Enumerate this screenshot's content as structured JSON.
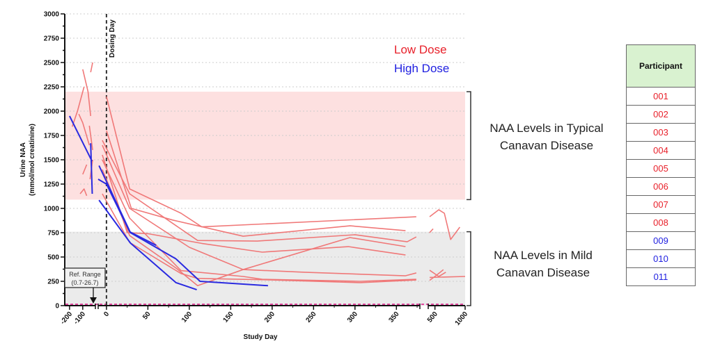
{
  "chart_data": {
    "type": "line",
    "xlabel": "Study Day",
    "ylabel_line1": "Urine NAA",
    "ylabel_line2": "(mmol/mol creatinine)",
    "ylim": [
      0,
      3000
    ],
    "y_ticks": [
      0,
      250,
      500,
      750,
      1000,
      1250,
      1500,
      1750,
      2000,
      2250,
      2500,
      2750,
      3000
    ],
    "x_axis": "segmented (broken axis)",
    "x_segments": [
      [
        -210,
        -20
      ],
      [
        -10,
        380
      ],
      [
        400,
        1000
      ]
    ],
    "x_ticks": [
      -200,
      -100,
      0,
      50,
      100,
      150,
      200,
      250,
      300,
      350,
      500,
      1000
    ],
    "grid": "horizontal dotted",
    "dosing_day": {
      "x": 0,
      "label": "Dosing Day"
    },
    "bands": [
      {
        "label": "NAA Levels in Typical Canavan Disease",
        "range": [
          1090,
          2200
        ],
        "color": "#fde0e0"
      },
      {
        "label": "NAA Levels in Mild Canavan Disease",
        "range": [
          0,
          760
        ],
        "color": "#ebebeb"
      }
    ],
    "reference_range": {
      "label_line1": "Ref. Range",
      "label_line2": "(0.7-26.7)",
      "range": [
        0.7,
        26.7
      ],
      "color": "#e0409a"
    },
    "legend": [
      {
        "name": "Low Dose",
        "color": "#e8202a"
      },
      {
        "name": "High Dose",
        "color": "#2020e0"
      }
    ],
    "legend_placement": "top-right",
    "series": [
      {
        "name": "001",
        "group": "Low Dose",
        "segments": [
          [
            [
              -100,
              2430
            ],
            [
              -60,
              2200
            ],
            [
              -40,
              1950
            ]
          ],
          [
            [
              0,
              2150
            ],
            [
              28,
              1200
            ],
            [
              90,
              950
            ],
            [
              115,
              810
            ],
            [
              374,
              914
            ]
          ],
          [
            [
              412,
              914
            ],
            [
              563,
              986
            ],
            [
              656,
              950
            ],
            [
              760,
              680
            ],
            [
              912,
              807
            ]
          ]
        ]
      },
      {
        "name": "002",
        "group": "Low Dose",
        "segments": [
          [
            [
              -180,
              1840
            ],
            [
              -140,
              2000
            ],
            [
              -90,
              2250
            ]
          ],
          [
            [
              0,
              1800
            ],
            [
              30,
              1000
            ],
            [
              80,
              880
            ],
            [
              165,
              714
            ],
            [
              294,
              821
            ],
            [
              361,
              771
            ]
          ],
          [
            [
              410,
              750
            ],
            [
              470,
              790
            ]
          ]
        ]
      },
      {
        "name": "003",
        "group": "Low Dose",
        "segments": [
          [
            [
              -130,
              1970
            ],
            [
              -100,
              1880
            ],
            [
              -50,
              1650
            ]
          ],
          [
            [
              -5,
              1700
            ],
            [
              28,
              1150
            ],
            [
              110,
              670
            ],
            [
              182,
              664
            ],
            [
              300,
              729
            ],
            [
              363,
              657
            ],
            [
              374,
              707
            ]
          ]
        ]
      },
      {
        "name": "004",
        "group": "Low Dose",
        "segments": [
          [
            [
              -100,
              1350
            ],
            [
              -70,
              1450
            ]
          ],
          [
            [
              -5,
              1550
            ],
            [
              25,
              750
            ],
            [
              50,
              740
            ],
            [
              115,
              640
            ],
            [
              188,
              550
            ],
            [
              292,
              607
            ],
            [
              361,
              521
            ]
          ]
        ]
      },
      {
        "name": "005",
        "group": "Low Dose",
        "segments": [
          [
            [
              -120,
              1150
            ],
            [
              -90,
              1200
            ],
            [
              -70,
              1130
            ]
          ],
          [
            [
              -5,
              1650
            ],
            [
              28,
              1000
            ],
            [
              100,
              600
            ],
            [
              165,
              371
            ],
            [
              239,
              343
            ],
            [
              361,
              307
            ],
            [
              374,
              336
            ]
          ],
          [
            [
              412,
              364
            ],
            [
              563,
              300
            ],
            [
              680,
              343
            ]
          ]
        ]
      },
      {
        "name": "006",
        "group": "Low Dose",
        "segments": [
          [
            [
              -40,
              2400
            ],
            [
              -25,
              2500
            ]
          ],
          [
            [
              -5,
              1400
            ],
            [
              28,
              720
            ],
            [
              85,
              380
            ],
            [
              110,
              205
            ],
            [
              165,
              371
            ],
            [
              294,
              700
            ],
            [
              361,
              607
            ]
          ]
        ]
      },
      {
        "name": "007",
        "group": "Low Dose",
        "segments": [
          [
            [
              -50,
              1850
            ],
            [
              -25,
              1600
            ]
          ],
          [
            [
              -5,
              1500
            ],
            [
              28,
              900
            ],
            [
              90,
              360
            ],
            [
              165,
              300
            ],
            [
              188,
              271
            ],
            [
              306,
              250
            ],
            [
              374,
              271
            ]
          ],
          [
            [
              412,
              290
            ],
            [
              1000,
              300
            ]
          ]
        ]
      },
      {
        "name": "008",
        "group": "Low Dose",
        "segments": [
          [
            [
              -45,
              1300
            ],
            [
              -25,
              1500
            ]
          ],
          [
            [
              -5,
              1150
            ],
            [
              28,
              650
            ],
            [
              90,
              330
            ],
            [
              110,
              280
            ],
            [
              200,
              264
            ],
            [
              306,
              236
            ],
            [
              374,
              264
            ]
          ],
          [
            [
              412,
              260
            ],
            [
              520,
              310
            ],
            [
              640,
              370
            ]
          ]
        ]
      },
      {
        "name": "009",
        "group": "High Dose",
        "segments": [
          [
            [
              -200,
              1950
            ],
            [
              -30,
              1485
            ]
          ],
          [
            [
              -9,
              1440
            ],
            [
              29,
              750
            ],
            [
              84,
              480
            ],
            [
              113,
              250
            ],
            [
              195,
              205
            ]
          ]
        ]
      },
      {
        "name": "010",
        "group": "High Dose",
        "segments": [
          [
            [
              -40,
              1670
            ],
            [
              -28,
              1150
            ]
          ],
          [
            [
              -9,
              1085
            ],
            [
              29,
              643
            ],
            [
              84,
              236
            ],
            [
              109,
              164
            ]
          ]
        ]
      },
      {
        "name": "011",
        "group": "High Dose",
        "segments": [
          [
            [
              -10,
              1300
            ],
            [
              0,
              1250
            ],
            [
              28,
              760
            ],
            [
              60,
              620
            ]
          ]
        ]
      }
    ]
  },
  "table": {
    "header": "Participant",
    "rows": [
      {
        "id": "001",
        "color": "#e8202a"
      },
      {
        "id": "002",
        "color": "#e8202a"
      },
      {
        "id": "003",
        "color": "#e8202a"
      },
      {
        "id": "004",
        "color": "#e8202a"
      },
      {
        "id": "005",
        "color": "#e8202a"
      },
      {
        "id": "006",
        "color": "#e8202a"
      },
      {
        "id": "007",
        "color": "#e8202a"
      },
      {
        "id": "008",
        "color": "#e8202a"
      },
      {
        "id": "009",
        "color": "#2020e0"
      },
      {
        "id": "010",
        "color": "#2020e0"
      },
      {
        "id": "011",
        "color": "#2020e0"
      }
    ]
  },
  "colors": {
    "low_line": "#f07878",
    "high_line": "#2a2ae0"
  }
}
